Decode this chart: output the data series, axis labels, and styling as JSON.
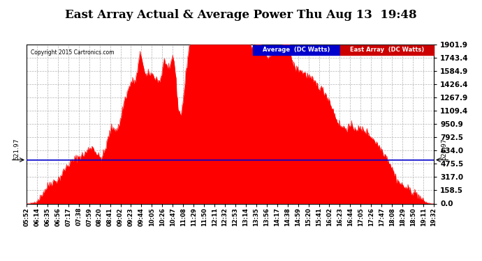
{
  "title": "East Array Actual & Average Power Thu Aug 13  19:48",
  "copyright": "Copyright 2015 Cartronics.com",
  "legend_avg_label": "Average  (DC Watts)",
  "legend_east_label": "East Array  (DC Watts)",
  "avg_value": 521.97,
  "y_ticks": [
    0.0,
    158.5,
    317.0,
    475.5,
    634.0,
    792.5,
    950.9,
    1109.4,
    1267.9,
    1426.4,
    1584.9,
    1743.4,
    1901.9
  ],
  "x_tick_labels": [
    "05:52",
    "06:14",
    "06:35",
    "06:56",
    "07:17",
    "07:38",
    "07:59",
    "08:20",
    "08:41",
    "09:02",
    "09:23",
    "09:44",
    "10:05",
    "10:26",
    "10:47",
    "11:08",
    "11:29",
    "11:50",
    "12:11",
    "12:32",
    "12:53",
    "13:14",
    "13:35",
    "13:56",
    "14:17",
    "14:38",
    "14:59",
    "15:20",
    "15:41",
    "16:02",
    "16:23",
    "16:44",
    "17:05",
    "17:26",
    "17:47",
    "18:08",
    "18:29",
    "18:50",
    "19:11",
    "19:32"
  ],
  "fill_color": "#ff0000",
  "avg_line_color": "#0000cc",
  "grid_color": "#aaaaaa",
  "bg_color": "#ffffff",
  "title_fontsize": 12,
  "tick_fontsize": 7.5,
  "xtick_fontsize": 6.0,
  "ymax": 1901.9,
  "avg_legend_bg": "#0000cc",
  "east_legend_bg": "#cc0000",
  "legend_text_color": "#ffffff"
}
